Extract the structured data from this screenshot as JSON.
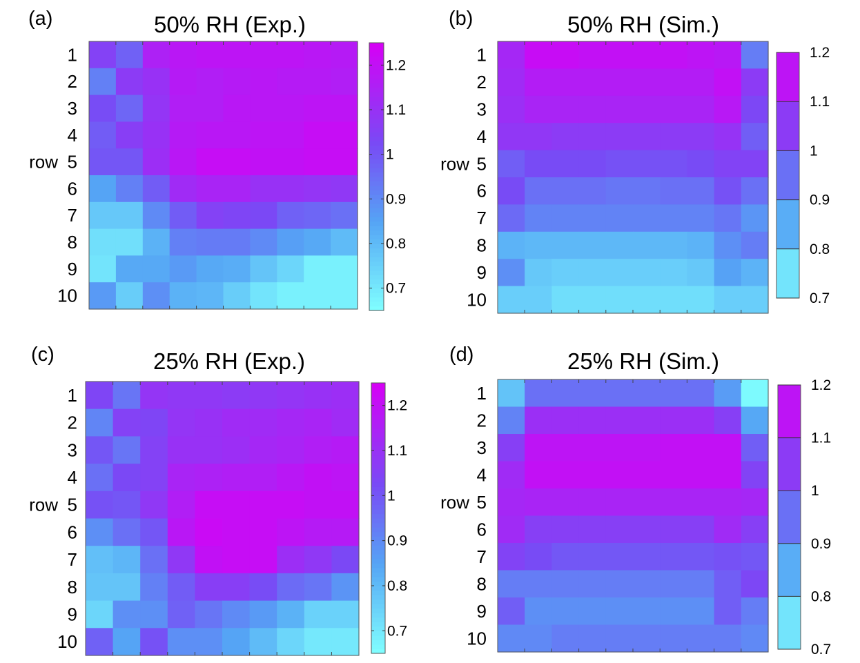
{
  "chart_data": [
    {
      "type": "heatmap",
      "panel_label": "(a)",
      "title": "50% RH (Exp.)",
      "ylabel": "row",
      "row_labels": [
        "1",
        "2",
        "3",
        "4",
        "5",
        "6",
        "7",
        "8",
        "9",
        "10"
      ],
      "colorbar": {
        "ticks": [
          "0.7",
          "0.8",
          "0.9",
          "1",
          "1.1",
          "1.2"
        ],
        "range": [
          0.65,
          1.25
        ],
        "style": "continuous"
      },
      "values": [
        [
          1.05,
          0.98,
          1.15,
          1.18,
          1.19,
          1.19,
          1.19,
          1.19,
          1.18,
          1.17
        ],
        [
          0.92,
          1.07,
          1.1,
          1.17,
          1.16,
          1.17,
          1.18,
          1.17,
          1.17,
          1.16
        ],
        [
          1.02,
          0.97,
          1.09,
          1.16,
          1.16,
          1.18,
          1.18,
          1.18,
          1.19,
          1.19
        ],
        [
          0.99,
          1.06,
          1.1,
          1.17,
          1.18,
          1.18,
          1.19,
          1.19,
          1.21,
          1.21
        ],
        [
          1.0,
          1.0,
          1.11,
          1.18,
          1.21,
          1.21,
          1.2,
          1.2,
          1.21,
          1.21
        ],
        [
          0.85,
          0.92,
          0.99,
          1.12,
          1.14,
          1.14,
          1.1,
          1.1,
          1.09,
          1.08
        ],
        [
          0.77,
          0.77,
          0.9,
          0.99,
          1.05,
          1.04,
          1.03,
          0.98,
          0.97,
          0.95
        ],
        [
          0.72,
          0.72,
          0.82,
          0.92,
          0.93,
          0.93,
          0.9,
          0.86,
          0.84,
          0.8
        ],
        [
          0.71,
          0.84,
          0.84,
          0.87,
          0.84,
          0.83,
          0.78,
          0.74,
          0.68,
          0.68
        ],
        [
          0.87,
          0.76,
          0.89,
          0.82,
          0.81,
          0.76,
          0.71,
          0.68,
          0.68,
          0.68
        ]
      ]
    },
    {
      "type": "heatmap",
      "panel_label": "(b)",
      "title": "50% RH (Sim.)",
      "ylabel": "row",
      "row_labels": [
        "1",
        "2",
        "3",
        "4",
        "5",
        "6",
        "7",
        "8",
        "9",
        "10"
      ],
      "colorbar": {
        "ticks": [
          "0.7",
          "0.8",
          "0.9",
          "1",
          "1.1",
          "1.2"
        ],
        "range": [
          0.7,
          1.2
        ],
        "style": "banded"
      },
      "values": [
        [
          1.1,
          1.17,
          1.17,
          1.16,
          1.16,
          1.16,
          1.16,
          1.15,
          1.14,
          0.93
        ],
        [
          1.09,
          1.13,
          1.13,
          1.13,
          1.13,
          1.13,
          1.13,
          1.13,
          1.16,
          1.05
        ],
        [
          1.08,
          1.11,
          1.11,
          1.11,
          1.11,
          1.11,
          1.11,
          1.11,
          1.14,
          1.02
        ],
        [
          1.06,
          1.06,
          1.05,
          1.05,
          1.05,
          1.05,
          1.05,
          1.05,
          1.07,
          0.98
        ],
        [
          0.98,
          1.01,
          1.01,
          1.01,
          1.0,
          1.0,
          1.0,
          1.01,
          1.03,
          1.03
        ],
        [
          1.01,
          0.95,
          0.95,
          0.95,
          0.94,
          0.94,
          0.95,
          0.95,
          1.0,
          0.95
        ],
        [
          0.96,
          0.92,
          0.92,
          0.92,
          0.92,
          0.92,
          0.92,
          0.92,
          0.94,
          0.89
        ],
        [
          0.84,
          0.83,
          0.83,
          0.83,
          0.83,
          0.83,
          0.83,
          0.84,
          0.9,
          0.93
        ],
        [
          0.9,
          0.8,
          0.79,
          0.79,
          0.79,
          0.79,
          0.79,
          0.8,
          0.87,
          0.84
        ],
        [
          0.79,
          0.79,
          0.76,
          0.76,
          0.76,
          0.76,
          0.76,
          0.76,
          0.79,
          0.79
        ]
      ]
    },
    {
      "type": "heatmap",
      "panel_label": "(c)",
      "title": "25% RH (Exp.)",
      "ylabel": "row",
      "row_labels": [
        "1",
        "2",
        "3",
        "4",
        "5",
        "6",
        "7",
        "8",
        "9",
        "10"
      ],
      "colorbar": {
        "ticks": [
          "0.7",
          "0.8",
          "0.9",
          "1",
          "1.1",
          "1.2"
        ],
        "range": [
          0.65,
          1.25
        ],
        "style": "continuous"
      },
      "values": [
        [
          1.04,
          0.94,
          1.09,
          1.08,
          1.08,
          1.07,
          1.08,
          1.09,
          1.1,
          1.11
        ],
        [
          0.91,
          1.05,
          1.04,
          1.09,
          1.1,
          1.12,
          1.12,
          1.13,
          1.14,
          1.12
        ],
        [
          1.0,
          0.94,
          1.05,
          1.1,
          1.1,
          1.11,
          1.13,
          1.14,
          1.16,
          1.17
        ],
        [
          0.95,
          1.03,
          1.05,
          1.14,
          1.15,
          1.16,
          1.16,
          1.18,
          1.2,
          1.19
        ],
        [
          1.01,
          1.0,
          1.08,
          1.16,
          1.21,
          1.21,
          1.21,
          1.21,
          1.2,
          1.2
        ],
        [
          0.89,
          0.95,
          1.0,
          1.18,
          1.22,
          1.21,
          1.21,
          1.19,
          1.17,
          1.17
        ],
        [
          0.79,
          0.81,
          0.95,
          1.08,
          1.2,
          1.21,
          1.21,
          1.11,
          1.08,
          1.03
        ],
        [
          0.78,
          0.78,
          0.92,
          0.99,
          1.06,
          1.06,
          1.02,
          0.96,
          0.94,
          0.88
        ],
        [
          0.74,
          0.89,
          0.89,
          0.98,
          0.94,
          0.9,
          0.87,
          0.82,
          0.75,
          0.75
        ],
        [
          0.98,
          0.85,
          1.01,
          0.89,
          0.89,
          0.85,
          0.8,
          0.74,
          0.7,
          0.7
        ]
      ]
    },
    {
      "type": "heatmap",
      "panel_label": "(d)",
      "title": "25% RH (Sim.)",
      "ylabel": "row",
      "row_labels": [
        "1",
        "2",
        "3",
        "4",
        "5",
        "6",
        "7",
        "8",
        "9",
        "10"
      ],
      "colorbar": {
        "ticks": [
          "0.7",
          "0.8",
          "0.9",
          "1",
          "1.1",
          "1.2"
        ],
        "range": [
          0.7,
          1.2
        ],
        "style": "banded"
      },
      "values": [
        [
          0.81,
          0.95,
          0.95,
          0.95,
          0.95,
          0.95,
          0.95,
          0.95,
          0.88,
          0.71
        ],
        [
          0.92,
          1.08,
          1.08,
          1.08,
          1.08,
          1.08,
          1.08,
          1.08,
          1.04,
          0.86
        ],
        [
          1.04,
          1.15,
          1.15,
          1.15,
          1.15,
          1.15,
          1.16,
          1.16,
          1.16,
          0.98
        ],
        [
          1.09,
          1.16,
          1.16,
          1.16,
          1.16,
          1.16,
          1.16,
          1.16,
          1.16,
          1.03
        ],
        [
          1.1,
          1.11,
          1.11,
          1.11,
          1.11,
          1.11,
          1.11,
          1.11,
          1.11,
          1.1
        ],
        [
          1.09,
          1.04,
          1.04,
          1.04,
          1.04,
          1.04,
          1.04,
          1.04,
          1.09,
          1.04
        ],
        [
          1.03,
          1.01,
          0.99,
          0.99,
          0.99,
          0.99,
          0.99,
          0.99,
          1.0,
          0.99
        ],
        [
          0.93,
          0.93,
          0.93,
          0.93,
          0.93,
          0.93,
          0.93,
          0.93,
          0.98,
          1.02
        ],
        [
          0.98,
          0.9,
          0.9,
          0.9,
          0.9,
          0.9,
          0.9,
          0.9,
          0.98,
          0.93
        ],
        [
          0.91,
          0.91,
          0.93,
          0.93,
          0.93,
          0.93,
          0.93,
          0.93,
          0.93,
          0.91
        ]
      ]
    }
  ]
}
